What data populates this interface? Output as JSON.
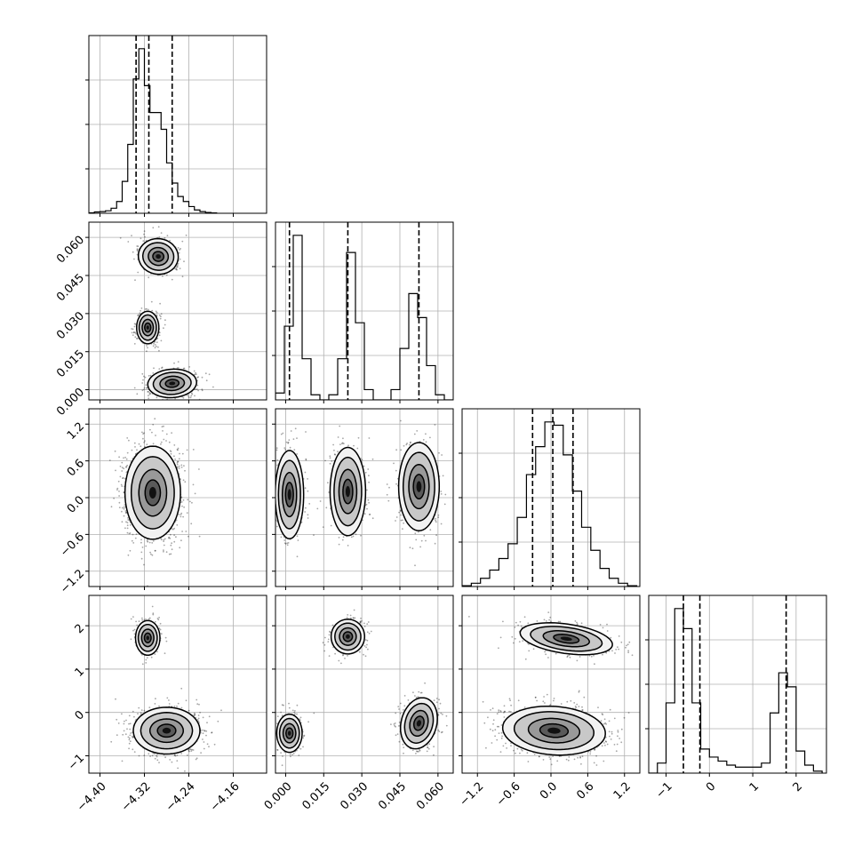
{
  "chart_data": {
    "type": "corner",
    "grid": true,
    "parameters": [
      {
        "range": [
          -4.42,
          -4.1
        ],
        "ticks": [
          -4.4,
          -4.32,
          -4.24,
          -4.16
        ],
        "tick_labels": [
          "−4.40",
          "−4.32",
          "−4.24",
          "−4.16"
        ],
        "quantiles": [
          -4.335,
          -4.312,
          -4.27
        ],
        "hist": {
          "edges": [
            -4.42,
            -4.41,
            -4.4,
            -4.39,
            -4.38,
            -4.37,
            -4.36,
            -4.35,
            -4.34,
            -4.33,
            -4.32,
            -4.31,
            -4.3,
            -4.29,
            -4.28,
            -4.27,
            -4.26,
            -4.25,
            -4.24,
            -4.23,
            -4.22,
            -4.21,
            -4.2,
            -4.19
          ],
          "values": [
            0.003,
            0.008,
            0.01,
            0.015,
            0.03,
            0.07,
            0.19,
            0.41,
            0.8,
            0.98,
            0.76,
            0.6,
            0.6,
            0.5,
            0.3,
            0.18,
            0.1,
            0.07,
            0.04,
            0.02,
            0.01,
            0.005,
            0.002
          ]
        }
      },
      {
        "range": [
          -0.004,
          0.066
        ],
        "ticks": [
          0.0,
          0.015,
          0.03,
          0.045,
          0.06
        ],
        "tick_labels": [
          "0.000",
          "0.015",
          "0.030",
          "0.045",
          "0.060"
        ],
        "quantiles": [
          0.0015,
          0.0245,
          0.0525
        ],
        "hist": {
          "edges": [
            -0.004,
            -0.0005,
            0.003,
            0.0065,
            0.01,
            0.0135,
            0.017,
            0.0205,
            0.024,
            0.0275,
            0.031,
            0.0345,
            0.038,
            0.0415,
            0.045,
            0.0485,
            0.052,
            0.0555,
            0.059,
            0.0625,
            0.066
          ],
          "values": [
            0.04,
            0.43,
            0.96,
            0.24,
            0.03,
            0.0,
            0.03,
            0.24,
            0.86,
            0.45,
            0.06,
            0.0,
            0.0,
            0.06,
            0.3,
            0.62,
            0.48,
            0.2,
            0.03,
            0.0
          ]
        }
      },
      {
        "range": [
          -1.45,
          1.45
        ],
        "ticks": [
          -1.2,
          -0.6,
          0.0,
          0.6,
          1.2
        ],
        "tick_labels": [
          "−1.2",
          "−0.6",
          "0.0",
          "0.6",
          "1.2"
        ],
        "quantiles": [
          -0.3,
          0.03,
          0.36
        ],
        "hist": {
          "edges": [
            -1.45,
            -1.3,
            -1.15,
            -1.0,
            -0.85,
            -0.7,
            -0.55,
            -0.4,
            -0.25,
            -0.1,
            0.05,
            0.2,
            0.35,
            0.5,
            0.65,
            0.8,
            0.95,
            1.1,
            1.25,
            1.4
          ],
          "values": [
            0.005,
            0.02,
            0.05,
            0.1,
            0.17,
            0.26,
            0.42,
            0.68,
            0.85,
            1.0,
            0.98,
            0.8,
            0.58,
            0.36,
            0.22,
            0.11,
            0.05,
            0.02,
            0.005
          ]
        }
      },
      {
        "range": [
          -1.4,
          2.7
        ],
        "ticks": [
          -1,
          0,
          1,
          2
        ],
        "tick_labels": [
          "−1",
          "0",
          "1",
          "2"
        ],
        "quantiles": [
          -0.6,
          -0.22,
          1.77
        ],
        "hist": {
          "edges": [
            -1.4,
            -1.2,
            -1.0,
            -0.8,
            -0.6,
            -0.4,
            -0.2,
            0.0,
            0.2,
            0.4,
            0.6,
            0.8,
            1.0,
            1.2,
            1.4,
            1.6,
            1.8,
            2.0,
            2.2,
            2.4,
            2.6
          ],
          "values": [
            0.0,
            0.05,
            0.35,
            0.82,
            0.72,
            0.35,
            0.12,
            0.08,
            0.06,
            0.04,
            0.03,
            0.03,
            0.03,
            0.05,
            0.3,
            0.5,
            0.43,
            0.11,
            0.04,
            0.01
          ]
        }
      }
    ],
    "pairs": [
      {
        "row": 1,
        "col": 0,
        "blobs": [
          {
            "cx": -4.295,
            "cy": 0.0525,
            "sx": 0.018,
            "sy": 0.0035,
            "rot": -8,
            "n": 550
          },
          {
            "cx": -4.314,
            "cy": 0.0245,
            "sx": 0.01,
            "sy": 0.0032,
            "rot": 0,
            "n": 420
          },
          {
            "cx": -4.27,
            "cy": 0.0025,
            "sx": 0.022,
            "sy": 0.0028,
            "rot": 4,
            "n": 600
          }
        ]
      },
      {
        "row": 2,
        "col": 0,
        "blobs": [
          {
            "cx": -4.305,
            "cy": 0.08,
            "sx": 0.025,
            "sy": 0.38,
            "rot": 0,
            "n": 1400
          }
        ]
      },
      {
        "row": 2,
        "col": 1,
        "blobs": [
          {
            "cx": 0.0015,
            "cy": 0.05,
            "sx": 0.0028,
            "sy": 0.36,
            "rot": 0,
            "n": 500
          },
          {
            "cx": 0.0245,
            "cy": 0.1,
            "sx": 0.0035,
            "sy": 0.36,
            "rot": 0,
            "n": 500
          },
          {
            "cx": 0.0525,
            "cy": 0.18,
            "sx": 0.004,
            "sy": 0.36,
            "rot": 0,
            "n": 500
          }
        ]
      },
      {
        "row": 3,
        "col": 0,
        "blobs": [
          {
            "cx": -4.314,
            "cy": 1.72,
            "sx": 0.011,
            "sy": 0.2,
            "rot": 0,
            "n": 420
          },
          {
            "cx": -4.28,
            "cy": -0.42,
            "sx": 0.03,
            "sy": 0.27,
            "rot": 0,
            "n": 1200
          }
        ]
      },
      {
        "row": 3,
        "col": 1,
        "blobs": [
          {
            "cx": 0.0015,
            "cy": -0.48,
            "sx": 0.0025,
            "sy": 0.22,
            "rot": 0,
            "n": 330
          },
          {
            "cx": 0.0245,
            "cy": 1.75,
            "sx": 0.0033,
            "sy": 0.2,
            "rot": 0,
            "n": 380
          },
          {
            "cx": 0.0525,
            "cy": -0.25,
            "sx": 0.0035,
            "sy": 0.3,
            "rot": -15,
            "n": 420
          }
        ]
      },
      {
        "row": 3,
        "col": 2,
        "blobs": [
          {
            "cx": 0.25,
            "cy": 1.7,
            "sx": 0.38,
            "sy": 0.17,
            "rot": -8,
            "n": 600
          },
          {
            "cx": 0.05,
            "cy": -0.42,
            "sx": 0.42,
            "sy": 0.28,
            "rot": -4,
            "n": 1200
          }
        ]
      }
    ]
  }
}
